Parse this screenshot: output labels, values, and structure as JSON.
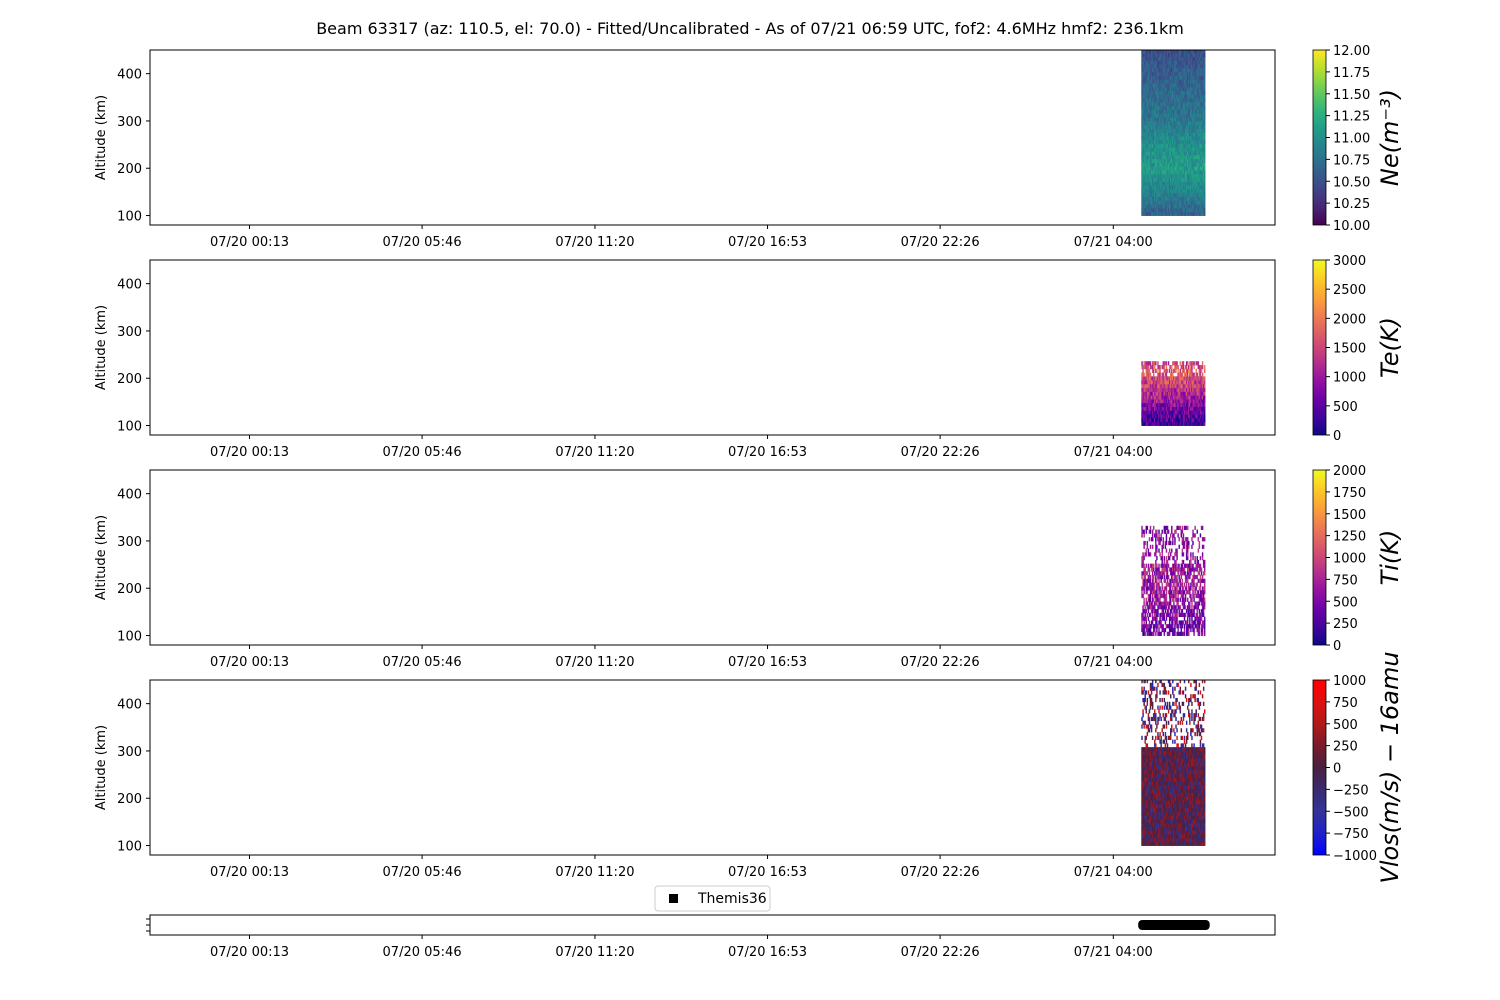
{
  "chart_data": {
    "title": "Beam 63317 (az: 110.5, el: 70.0) - Fitted/Uncalibrated - As of 07/21 06:59 UTC, fof2: 4.6MHz  hmf2: 236.1km",
    "time_ticks": [
      "07/20 00:13",
      "07/20 05:46",
      "07/20 11:20",
      "07/20 16:53",
      "07/20 22:26",
      "07/21 04:00"
    ],
    "time_ticks_hours": [
      0.22,
      5.77,
      11.33,
      16.88,
      22.43,
      28.0
    ],
    "time_range_hours": [
      -2.98,
      33.2
    ],
    "panels": [
      {
        "type": "heatmap",
        "ylabel": "Altitude (km)",
        "ylim": [
          80,
          450
        ],
        "yticks": [
          100,
          200,
          300,
          400
        ],
        "colorbar_label": "Ne(m⁻³)",
        "colorbar_ticks": [
          "12.00",
          "11.75",
          "11.50",
          "11.25",
          "11.00",
          "10.75",
          "10.50",
          "10.25",
          "10.00"
        ],
        "clim": [
          10.0,
          12.0
        ],
        "colormap": "viridis",
        "data_extent": {
          "time_hours": [
            28.9,
            30.95
          ],
          "altitude_km": [
            100,
            450
          ]
        },
        "profile": [
          [
            100,
            10.6
          ],
          [
            150,
            10.9
          ],
          [
            200,
            11.1
          ],
          [
            250,
            11.0
          ],
          [
            300,
            10.8
          ],
          [
            350,
            10.7
          ],
          [
            400,
            10.6
          ],
          [
            450,
            10.5
          ]
        ]
      },
      {
        "type": "heatmap",
        "ylabel": "Altitude (km)",
        "ylim": [
          80,
          450
        ],
        "yticks": [
          100,
          200,
          300,
          400
        ],
        "colorbar_label": "Te(K)",
        "colorbar_ticks": [
          "3000",
          "2500",
          "2000",
          "1500",
          "1000",
          "500",
          "0"
        ],
        "clim": [
          0,
          3000
        ],
        "colormap": "plasma",
        "data_extent": {
          "time_hours": [
            28.9,
            30.95
          ],
          "altitude_km": [
            100,
            235
          ]
        },
        "profile": [
          [
            100,
            300
          ],
          [
            130,
            600
          ],
          [
            160,
            1100
          ],
          [
            190,
            1500
          ],
          [
            215,
            1700
          ],
          [
            235,
            1500
          ]
        ]
      },
      {
        "type": "heatmap",
        "ylabel": "Altitude (km)",
        "ylim": [
          80,
          450
        ],
        "yticks": [
          100,
          200,
          300,
          400
        ],
        "colorbar_label": "Ti(K)",
        "colorbar_ticks": [
          "2000",
          "1750",
          "1500",
          "1250",
          "1000",
          "750",
          "500",
          "250",
          "0"
        ],
        "clim": [
          0,
          2000
        ],
        "colormap": "plasma",
        "data_extent": {
          "time_hours": [
            28.9,
            30.95
          ],
          "altitude_km": [
            100,
            330
          ]
        },
        "profile": [
          [
            100,
            400
          ],
          [
            150,
            560
          ],
          [
            200,
            700
          ],
          [
            250,
            650
          ],
          [
            300,
            600
          ],
          [
            330,
            580
          ]
        ]
      },
      {
        "type": "heatmap",
        "ylabel": "Altitude (km)",
        "ylim": [
          80,
          450
        ],
        "yticks": [
          100,
          200,
          300,
          400
        ],
        "colorbar_label": "Vlos(m/s) − 16amu",
        "colorbar_ticks": [
          "1000",
          "750",
          "500",
          "250",
          "0",
          "−250",
          "−500",
          "−750",
          "−1000"
        ],
        "clim": [
          -1000,
          1000
        ],
        "colormap": "bwr_dark",
        "data_extent": {
          "time_hours": [
            28.9,
            30.95
          ],
          "altitude_km": [
            100,
            450
          ]
        },
        "profile": [
          [
            100,
            0
          ],
          [
            300,
            0
          ],
          [
            450,
            0
          ]
        ]
      }
    ],
    "timeline": {
      "legend": "Themis36",
      "bar_time_hours": [
        28.8,
        31.1
      ]
    }
  }
}
